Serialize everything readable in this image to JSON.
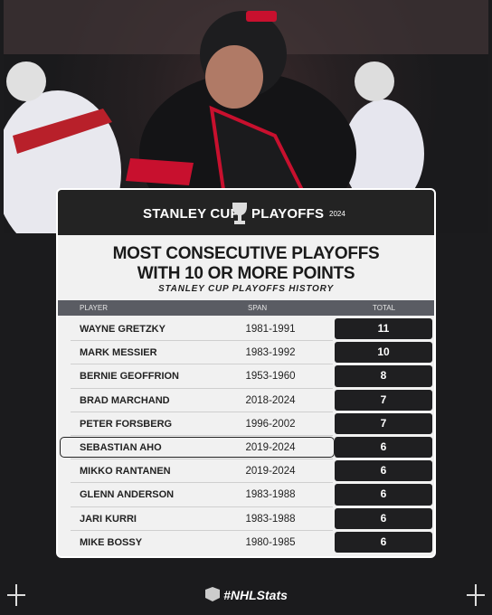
{
  "header": {
    "brand_left": "STANLEY CUP",
    "brand_right": "PLAYOFFS",
    "year": "2024"
  },
  "title": {
    "line1": "MOST CONSECUTIVE PLAYOFFS",
    "line2": "WITH 10 OR MORE POINTS",
    "subtitle": "STANLEY CUP PLAYOFFS HISTORY"
  },
  "table": {
    "columns": [
      "PLAYER",
      "SPAN",
      "TOTAL"
    ],
    "rows": [
      [
        "WAYNE GRETZKY",
        "1981-1991",
        11
      ],
      [
        "MARK MESSIER",
        "1983-1992",
        10
      ],
      [
        "BERNIE GEOFFRION",
        "1953-1960",
        8
      ],
      [
        "BRAD MARCHAND",
        "2018-2024",
        7
      ],
      [
        "PETER FORSBERG",
        "1996-2002",
        7
      ],
      [
        "SEBASTIAN AHO",
        "2019-2024",
        6
      ],
      [
        "MIKKO RANTANEN",
        "2019-2024",
        6
      ],
      [
        "GLENN ANDERSON",
        "1983-1988",
        6
      ],
      [
        "JARI KURRI",
        "1983-1988",
        6
      ],
      [
        "MIKE BOSSY",
        "1980-1985",
        6
      ]
    ]
  },
  "footer": {
    "hashtag": "#NHLStats"
  }
}
